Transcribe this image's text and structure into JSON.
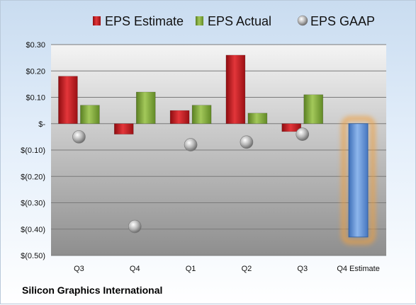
{
  "company": "Silicon Graphics International",
  "chart_data": {
    "type": "bar",
    "categories": [
      "Q3",
      "Q4",
      "Q1",
      "Q2",
      "Q3",
      "Q4 Estimate"
    ],
    "series": [
      {
        "name": "EPS Estimate",
        "kind": "bar",
        "color": "#c0181e",
        "values": [
          0.18,
          -0.04,
          0.05,
          0.26,
          -0.03,
          null
        ]
      },
      {
        "name": "EPS Actual",
        "kind": "bar",
        "color": "#80a83a",
        "values": [
          0.07,
          0.12,
          0.07,
          0.04,
          0.11,
          null
        ]
      },
      {
        "name": "EPS GAAP",
        "kind": "marker",
        "color": "#a0a0a0",
        "values": [
          -0.05,
          -0.39,
          -0.08,
          -0.07,
          -0.04,
          null
        ]
      }
    ],
    "highlight": {
      "category": "Q4 Estimate",
      "value": -0.43,
      "color": "#5b8fd6",
      "glow": "#f0a040"
    },
    "yticks": [
      0.3,
      0.2,
      0.1,
      0,
      -0.1,
      -0.2,
      -0.3,
      -0.4,
      -0.5
    ],
    "ytick_labels": [
      "$0.30",
      "$0.20",
      "$0.10",
      "$-",
      "$(0.10)",
      "$(0.20)",
      "$(0.30)",
      "$(0.40)",
      "$(0.50)"
    ],
    "ylim": [
      -0.5,
      0.3
    ],
    "grid": true,
    "legend_position": "top"
  }
}
